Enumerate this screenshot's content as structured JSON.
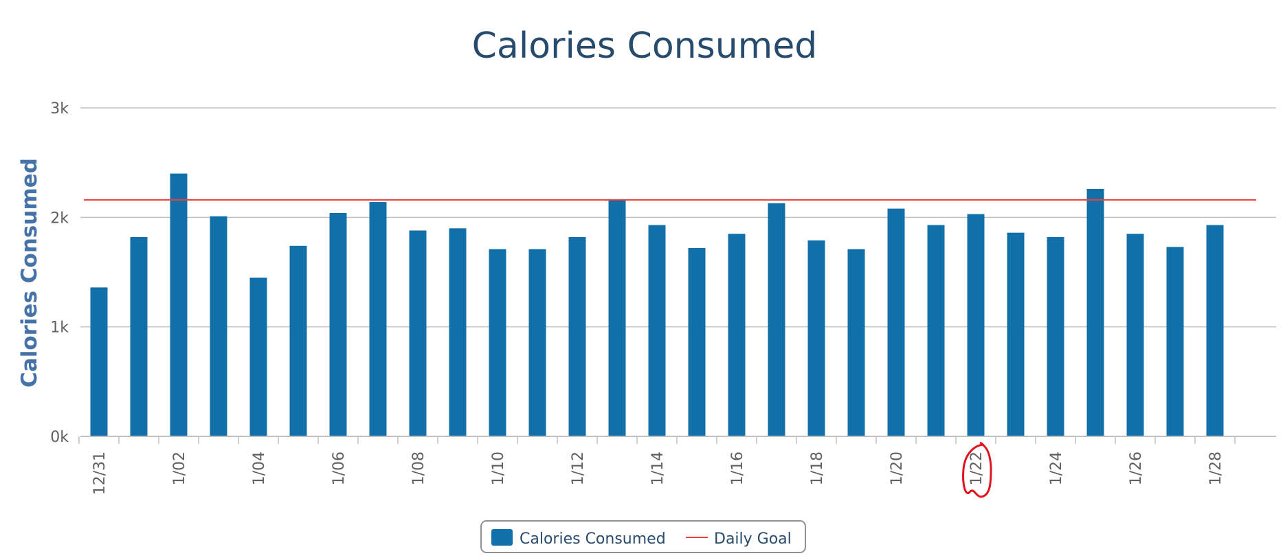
{
  "colors": {
    "bar": "#1170aa",
    "goal_line": "#e8413b",
    "title": "#274b6d",
    "axis_title": "#4572a7",
    "gridline": "#c0c0c0",
    "tick_text": "#606060",
    "annotation": "#e0141e"
  },
  "chart_data": {
    "type": "bar",
    "title": "Calories Consumed",
    "ylabel": "Calories Consumed",
    "xlabel": "",
    "ylim": [
      0,
      3000
    ],
    "y_ticks": [
      {
        "value": 0,
        "label": "0k"
      },
      {
        "value": 1000,
        "label": "1k"
      },
      {
        "value": 2000,
        "label": "2k"
      },
      {
        "value": 3000,
        "label": "3k"
      }
    ],
    "grid": true,
    "legend_position": "bottom-center",
    "categories": [
      "12/31",
      "1/01",
      "1/02",
      "1/03",
      "1/04",
      "1/05",
      "1/06",
      "1/07",
      "1/08",
      "1/09",
      "1/10",
      "1/11",
      "1/12",
      "1/13",
      "1/14",
      "1/15",
      "1/16",
      "1/17",
      "1/18",
      "1/19",
      "1/20",
      "1/21",
      "1/22",
      "1/23",
      "1/24",
      "1/25",
      "1/26",
      "1/27",
      "1/28"
    ],
    "x_tick_labels": [
      "12/31",
      "1/02",
      "1/04",
      "1/06",
      "1/08",
      "1/10",
      "1/12",
      "1/14",
      "1/16",
      "1/18",
      "1/20",
      "1/22",
      "1/24",
      "1/26",
      "1/28"
    ],
    "series": [
      {
        "name": "Calories Consumed",
        "type": "bar",
        "values": [
          1360,
          1820,
          2400,
          2010,
          1450,
          1740,
          2040,
          2140,
          1880,
          1900,
          1710,
          1710,
          1820,
          2160,
          1930,
          1720,
          1850,
          2130,
          1790,
          1710,
          2080,
          1930,
          2030,
          1860,
          1820,
          2260,
          1850,
          1730,
          1930
        ]
      },
      {
        "name": "Daily Goal",
        "type": "line",
        "value": 2160
      }
    ],
    "annotation": {
      "type": "hand-drawn-circle",
      "target_label": "1/22"
    }
  }
}
